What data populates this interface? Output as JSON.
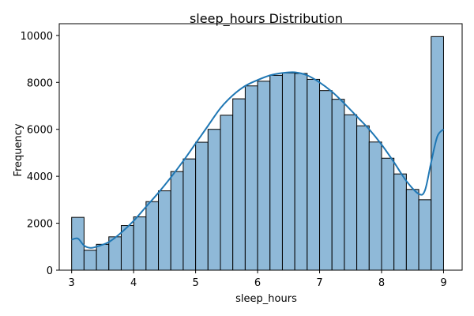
{
  "chart_data": {
    "type": "bar",
    "title": "sleep_hours Distribution",
    "xlabel": "sleep_hours",
    "ylabel": "Frequency",
    "xlim": [
      2.8,
      9.3
    ],
    "ylim": [
      0,
      10500
    ],
    "xticks": [
      3,
      4,
      5,
      6,
      7,
      8,
      9
    ],
    "yticks": [
      0,
      2000,
      4000,
      6000,
      8000,
      10000
    ],
    "bin_start": 3.0,
    "bin_width": 0.2,
    "values": [
      2250,
      850,
      1100,
      1420,
      1900,
      2270,
      2920,
      3380,
      4200,
      4740,
      5450,
      6000,
      6600,
      7300,
      7850,
      8050,
      8300,
      8400,
      8380,
      8130,
      7650,
      7280,
      6620,
      6150,
      5460,
      4770,
      4100,
      3440,
      3000,
      9950
    ],
    "kde": {
      "x": [
        3.0,
        3.1,
        3.2,
        3.3,
        3.4,
        3.6,
        3.8,
        4.0,
        4.2,
        4.4,
        4.6,
        4.8,
        5.0,
        5.2,
        5.4,
        5.6,
        5.8,
        6.0,
        6.2,
        6.4,
        6.6,
        6.8,
        7.0,
        7.2,
        7.4,
        7.6,
        7.8,
        8.0,
        8.2,
        8.4,
        8.6,
        8.7,
        8.8,
        8.9,
        9.0
      ],
      "y": [
        1300,
        1350,
        1050,
        950,
        1000,
        1200,
        1600,
        2100,
        2700,
        3300,
        3950,
        4650,
        5400,
        6150,
        6900,
        7450,
        7850,
        8100,
        8300,
        8400,
        8430,
        8300,
        8000,
        7600,
        7100,
        6550,
        6000,
        5350,
        4600,
        3800,
        3250,
        3400,
        4600,
        5700,
        6000
      ]
    },
    "colors": {
      "bar_fill": "#8fb9d8",
      "line": "#1f77b4"
    }
  }
}
